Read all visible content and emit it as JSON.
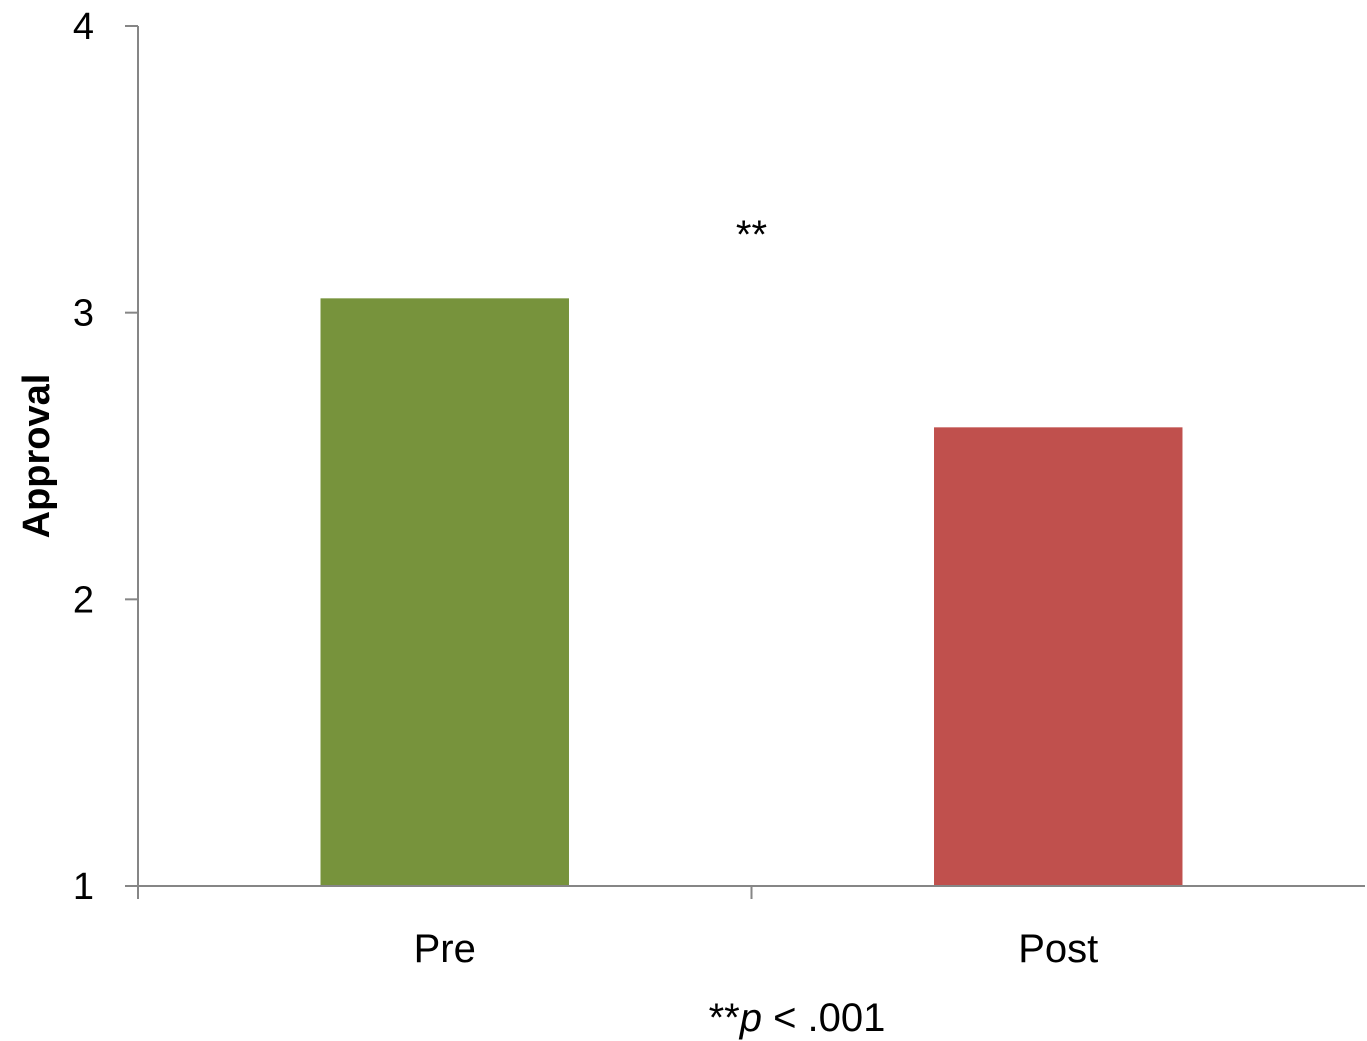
{
  "chart_data": {
    "type": "bar",
    "categories": [
      "Pre",
      "Post"
    ],
    "values": [
      3.05,
      2.6
    ],
    "colors": [
      "#77933c",
      "#c0504d"
    ],
    "title": "",
    "xlabel": "",
    "ylabel": "Approval",
    "ylim": [
      1,
      4
    ],
    "yticks": [
      "1",
      "2",
      "3",
      "4"
    ],
    "grid": false,
    "legend": "none",
    "annotations": {
      "significance_marker": "**",
      "footnote_stars": "**",
      "footnote_p": "p",
      "footnote_rest": " < .001"
    }
  }
}
